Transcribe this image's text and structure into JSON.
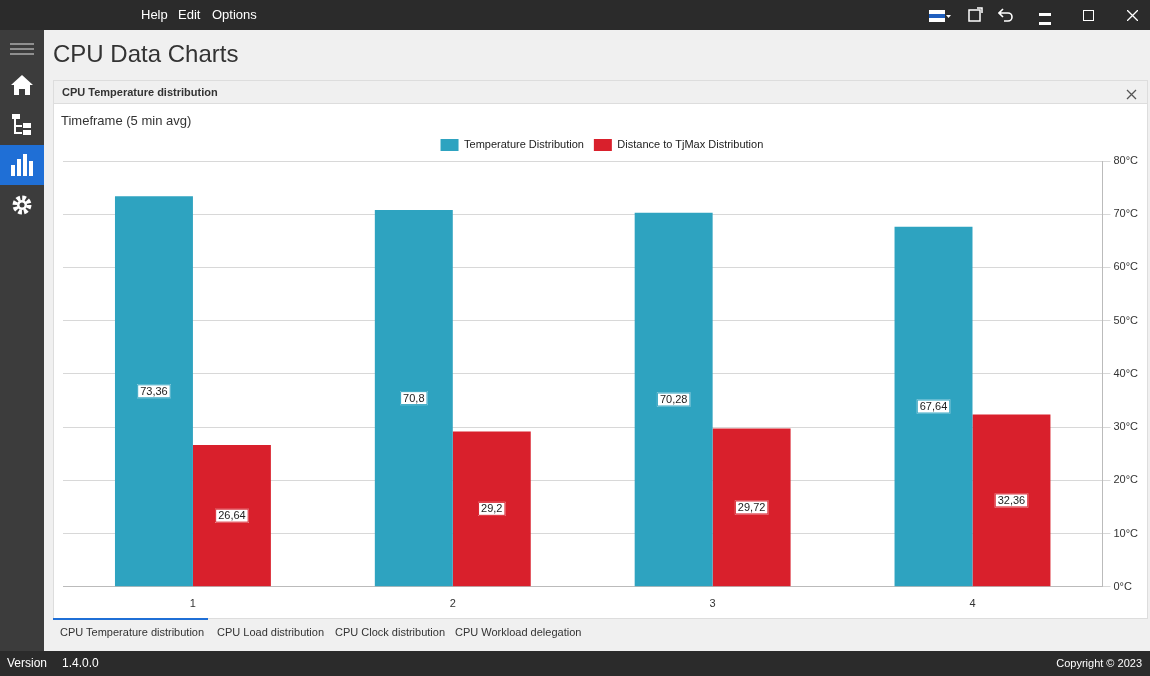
{
  "chart_data": {
    "type": "bar",
    "title": "CPU Temperature distribution",
    "subtitle": "Timeframe (5 min avg)",
    "categories": [
      "1",
      "2",
      "3",
      "4"
    ],
    "series": [
      {
        "name": "Temperature Distribution",
        "color": "#2ea3c0",
        "values": [
          73.36,
          70.8,
          70.28,
          67.64
        ],
        "value_labels": [
          "73,36",
          "70,8",
          "70,28",
          "67,64"
        ]
      },
      {
        "name": "Distance to TjMax Distribution",
        "color": "#d9202c",
        "values": [
          26.64,
          29.2,
          29.72,
          32.36
        ],
        "value_labels": [
          "26,64",
          "29,2",
          "29,72",
          "32,36"
        ]
      }
    ],
    "ylim": [
      0,
      80
    ],
    "yticks": [
      {
        "value": 0,
        "label": "0°C"
      },
      {
        "value": 10,
        "label": "10°C"
      },
      {
        "value": 20,
        "label": "20°C"
      },
      {
        "value": 30,
        "label": "30°C"
      },
      {
        "value": 40,
        "label": "40°C"
      },
      {
        "value": 50,
        "label": "50°C"
      },
      {
        "value": 60,
        "label": "60°C"
      },
      {
        "value": 70,
        "label": "70°C"
      },
      {
        "value": 80,
        "label": "80°C"
      }
    ],
    "grid": "y",
    "legend": "top",
    "annotations": [
      "CPU Data Charts",
      "Help",
      "Edit",
      "Options",
      "CPU Temperature distribution",
      "CPU Load distribution",
      "CPU Clock distribution",
      "CPU Workload delegation",
      "Version",
      "1.4.0.0",
      "Copyright © 2023"
    ]
  }
}
